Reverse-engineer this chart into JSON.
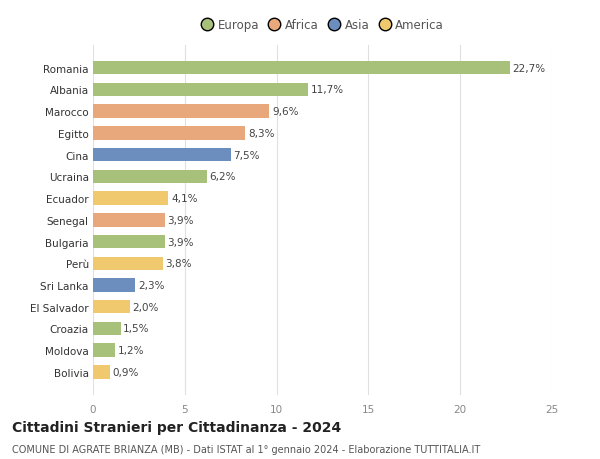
{
  "countries": [
    "Romania",
    "Albania",
    "Marocco",
    "Egitto",
    "Cina",
    "Ucraina",
    "Ecuador",
    "Senegal",
    "Bulgaria",
    "Perù",
    "Sri Lanka",
    "El Salvador",
    "Croazia",
    "Moldova",
    "Bolivia"
  ],
  "values": [
    22.7,
    11.7,
    9.6,
    8.3,
    7.5,
    6.2,
    4.1,
    3.9,
    3.9,
    3.8,
    2.3,
    2.0,
    1.5,
    1.2,
    0.9
  ],
  "labels": [
    "22,7%",
    "11,7%",
    "9,6%",
    "8,3%",
    "7,5%",
    "6,2%",
    "4,1%",
    "3,9%",
    "3,9%",
    "3,8%",
    "2,3%",
    "2,0%",
    "1,5%",
    "1,2%",
    "0,9%"
  ],
  "colors": [
    "#a8c17a",
    "#a8c17a",
    "#e8a87c",
    "#e8a87c",
    "#6b8ebf",
    "#a8c17a",
    "#f0c96e",
    "#e8a87c",
    "#a8c17a",
    "#f0c96e",
    "#6b8ebf",
    "#f0c96e",
    "#a8c17a",
    "#a8c17a",
    "#f0c96e"
  ],
  "legend_labels": [
    "Europa",
    "Africa",
    "Asia",
    "America"
  ],
  "legend_colors": [
    "#a8c17a",
    "#e8a87c",
    "#6b8ebf",
    "#f0c96e"
  ],
  "title": "Cittadini Stranieri per Cittadinanza - 2024",
  "subtitle": "COMUNE DI AGRATE BRIANZA (MB) - Dati ISTAT al 1° gennaio 2024 - Elaborazione TUTTITALIA.IT",
  "xlim": [
    0,
    25
  ],
  "xticks": [
    0,
    5,
    10,
    15,
    20,
    25
  ],
  "background_color": "#ffffff",
  "grid_color": "#e0e0e0",
  "bar_height": 0.62,
  "label_fontsize": 7.5,
  "title_fontsize": 10,
  "subtitle_fontsize": 7,
  "tick_fontsize": 7.5,
  "legend_fontsize": 8.5
}
